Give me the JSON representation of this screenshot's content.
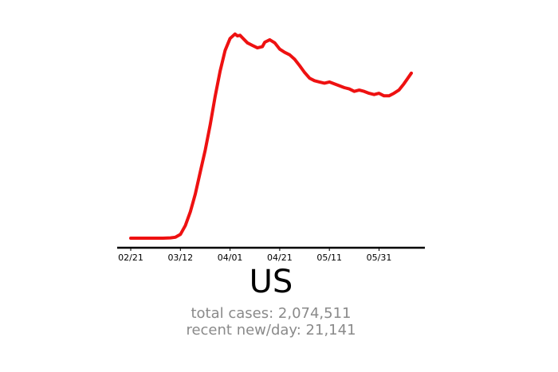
{
  "region": "US",
  "stats": {
    "total_cases": "total cases: 2,074,511",
    "recent_per_day": "recent new/day: 21,141"
  },
  "colors": {
    "line": "#ee1111",
    "axis": "#000000",
    "stats_text": "#8a8a8a"
  },
  "chart_data": {
    "type": "line",
    "title": "",
    "xlabel": "",
    "ylabel": "",
    "x_tick_labels": [
      "02/21",
      "03/12",
      "04/01",
      "04/21",
      "05/11",
      "05/31"
    ],
    "x_start": "2020-02-21",
    "x_end": "2020-06-13",
    "ylim": [
      0,
      33000
    ],
    "grid": false,
    "series": [
      {
        "x": [
          "2020-02-21",
          "2020-02-25",
          "2020-03-01",
          "2020-03-05",
          "2020-03-08",
          "2020-03-10",
          "2020-03-12",
          "2020-03-14",
          "2020-03-16",
          "2020-03-18",
          "2020-03-20",
          "2020-03-22",
          "2020-03-24",
          "2020-03-26",
          "2020-03-28",
          "2020-03-30",
          "2020-04-01",
          "2020-04-03",
          "2020-04-04",
          "2020-04-05",
          "2020-04-06",
          "2020-04-08",
          "2020-04-10",
          "2020-04-12",
          "2020-04-14",
          "2020-04-15",
          "2020-04-17",
          "2020-04-19",
          "2020-04-21",
          "2020-04-23",
          "2020-04-25",
          "2020-04-27",
          "2020-04-29",
          "2020-05-01",
          "2020-05-03",
          "2020-05-05",
          "2020-05-07",
          "2020-05-09",
          "2020-05-11",
          "2020-05-13",
          "2020-05-15",
          "2020-05-17",
          "2020-05-19",
          "2020-05-21",
          "2020-05-23",
          "2020-05-25",
          "2020-05-27",
          "2020-05-29",
          "2020-05-31",
          "2020-06-02",
          "2020-06-04",
          "2020-06-06",
          "2020-06-08",
          "2020-06-10",
          "2020-06-13"
        ],
        "y": [
          0,
          0,
          0,
          0,
          50,
          150,
          600,
          2000,
          4200,
          7000,
          10500,
          14000,
          18000,
          22500,
          26500,
          29800,
          31700,
          32400,
          32100,
          32200,
          31800,
          31000,
          30600,
          30200,
          30400,
          31100,
          31500,
          31000,
          30000,
          29500,
          29100,
          28400,
          27400,
          26300,
          25400,
          25000,
          24800,
          24600,
          24800,
          24500,
          24200,
          23900,
          23700,
          23300,
          23500,
          23300,
          23000,
          22800,
          23000,
          22600,
          22600,
          23000,
          23500,
          24500,
          26200
        ]
      }
    ]
  }
}
